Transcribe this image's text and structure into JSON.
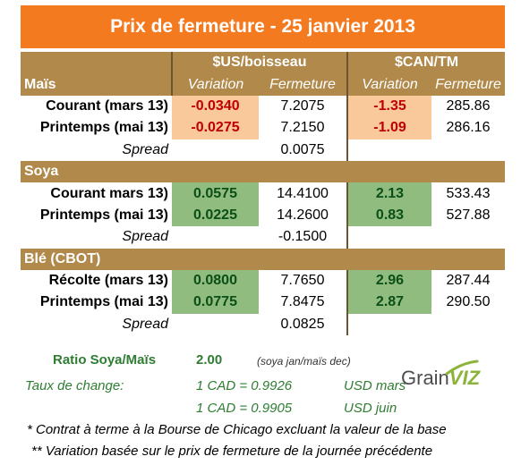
{
  "title": "Prix de fermeture - 25 janvier 2013",
  "header": {
    "usd_label": "$US/boisseau",
    "cad_label": "$CAN/TM",
    "variation": "Variation",
    "fermeture": "Fermeture"
  },
  "sections": [
    {
      "name": "Maïs",
      "rows": [
        {
          "label": "Courant (mars 13)",
          "usd_var": "-0.0340",
          "usd_ferm": "7.2075",
          "cad_var": "-1.35",
          "cad_ferm": "285.86"
        },
        {
          "label": "Printemps (mai 13)",
          "usd_var": "-0.0275",
          "usd_ferm": "7.2150",
          "cad_var": "-1.09",
          "cad_ferm": "286.16"
        }
      ],
      "spread_label": "Spread",
      "spread": "0.0075"
    },
    {
      "name": "Soya",
      "rows": [
        {
          "label": "Courant mars 13)",
          "usd_var": "0.0575",
          "usd_ferm": "14.4100",
          "cad_var": "2.13",
          "cad_ferm": "533.43"
        },
        {
          "label": "Printemps (mai 13)",
          "usd_var": "0.0225",
          "usd_ferm": "14.2600",
          "cad_var": "0.83",
          "cad_ferm": "527.88"
        }
      ],
      "spread_label": "Spread",
      "spread": "-0.1500"
    },
    {
      "name": "Blé (CBOT)",
      "rows": [
        {
          "label": "Récolte (mars 13)",
          "usd_var": "0.0800",
          "usd_ferm": "7.7650",
          "cad_var": "2.96",
          "cad_ferm": "287.44"
        },
        {
          "label": "Printemps (mai 13)",
          "usd_var": "0.0775",
          "usd_ferm": "7.8475",
          "cad_var": "2.87",
          "cad_ferm": "290.50"
        }
      ],
      "spread_label": "Spread",
      "spread": "0.0825"
    }
  ],
  "footer": {
    "ratio_label": "Ratio Soya/Maïs",
    "ratio_value": "2.00",
    "ratio_note": "(soya jan/maïs dec)",
    "fx_label": "Taux de change:",
    "fx1": "1 CAD =  0.9926",
    "fx1_unit": "USD mars",
    "fx2": "1 CAD =  0.9905",
    "fx2_unit": "USD juin",
    "note1": "* Contrat à terme à la Bourse de Chicago excluant la valeur de la base",
    "note2": "** Variation basée sur le prix de fermeture de la journée précédente"
  },
  "logo": {
    "part1": "Grain",
    "part2": "VIZ"
  },
  "colors": {
    "title_bg": "#f47a20",
    "band": "#b0894b",
    "neg_bg": "#f9c99b",
    "pos_bg": "#90bc80"
  }
}
